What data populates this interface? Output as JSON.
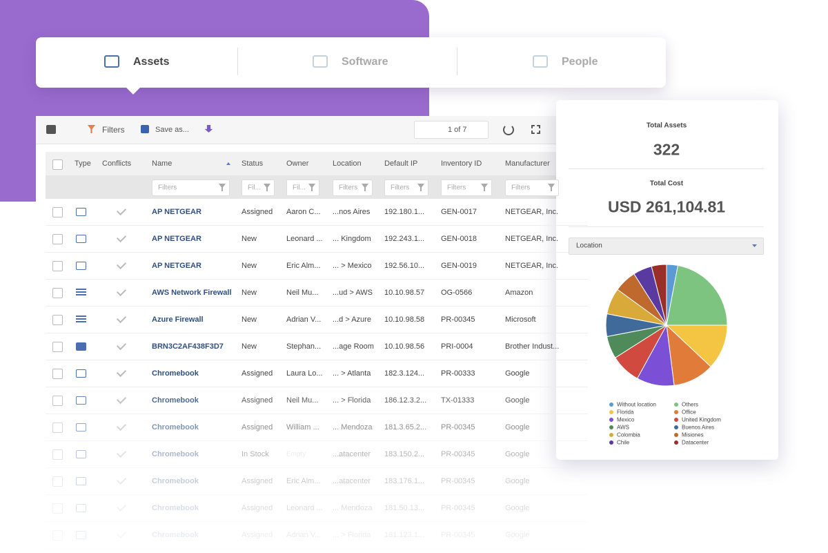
{
  "tabs": [
    "Assets",
    "Software",
    "People"
  ],
  "toolbar": {
    "filters": "Filters",
    "save": "Save as...",
    "pagination": "1 of 7"
  },
  "table": {
    "columns": [
      "Type",
      "Conflicts",
      "Name",
      "Status",
      "Owner",
      "Location",
      "Default IP",
      "Inventory ID",
      "Manufacturer"
    ],
    "filter_placeholders": [
      "Filters",
      "Fil...",
      "Fil...",
      "Filters",
      "Filters",
      "Filters",
      "Filters"
    ],
    "rows": [
      [
        "AP NETGEAR",
        "Assigned",
        "Aaron C...",
        "...nos Aires",
        "192.180.1...",
        "GEN-0017",
        "NETGEAR, Inc."
      ],
      [
        "AP NETGEAR",
        "New",
        "Leonard ...",
        "... Kingdom",
        "192.243.1...",
        "GEN-0018",
        "NETGEAR, Inc."
      ],
      [
        "AP NETGEAR",
        "New",
        "Eric Alm...",
        "... > Mexico",
        "192.56.10...",
        "GEN-0019",
        "NETGEAR, Inc."
      ],
      [
        "AWS Network Firewall",
        "New",
        "Neil Mu...",
        "...ud > AWS",
        "10.10.98.57",
        "OG-0566",
        "Amazon"
      ],
      [
        "Azure Firewall",
        "New",
        "Adrian V...",
        "...d > Azure",
        "10.10.98.58",
        "PR-00345",
        "Microsoft"
      ],
      [
        "BRN3C2AF438F3D7",
        "New",
        "Stephan...",
        "...age Room",
        "10.10.98.56",
        "PRI-0004",
        "Brother Indust..."
      ],
      [
        "Chromebook",
        "Assigned",
        "Laura Lo...",
        "... > Atlanta",
        "182.3.124...",
        "PR-00333",
        "Google"
      ],
      [
        "Chromebook",
        "Assigned",
        "Neil Mu...",
        "... > Florida",
        "186.12.3.2...",
        "TX-01333",
        "Google"
      ],
      [
        "Chromebook",
        "Assigned",
        "William ...",
        "... Mendoza",
        "181.3.65.2...",
        "PR-00345",
        "Google"
      ],
      [
        "Chromebook",
        "In Stock",
        "Empty",
        "...atacenter",
        "183.150.2...",
        "PR-00345",
        "Google"
      ],
      [
        "Chromebook",
        "Assigned",
        "Eric Alm...",
        "...atacenter",
        "183.176.1...",
        "PR-00345",
        "Google"
      ],
      [
        "Chromebook",
        "Assigned",
        "Leonard ...",
        "... Mendoza",
        "181.50.13...",
        "PR-00345",
        "Google"
      ],
      [
        "Chromebook",
        "Assigned",
        "Adrian V...",
        "... > Florida",
        "181.123.1...",
        "PR-00345",
        "Google"
      ]
    ]
  },
  "panel": {
    "total_assets_label": "Total Assets",
    "total_assets": "322",
    "total_cost_label": "Total Cost",
    "total_cost": "USD 261,104.81",
    "dropdown": "Location"
  },
  "chart_data": {
    "type": "pie",
    "categories": [
      "Without location",
      "Others",
      "Florida",
      "Office",
      "Mexico",
      "United Kingdom",
      "AWS",
      "Buenos Aires",
      "Colombia",
      "Misiones",
      "Chile",
      "Datacenter"
    ],
    "values": [
      3,
      22,
      12,
      11,
      10,
      8,
      6,
      6,
      7,
      6,
      5,
      4
    ],
    "colors": [
      "#5b9bd5",
      "#7cc47f",
      "#f4c542",
      "#e07b39",
      "#7b4fd6",
      "#d04a3f",
      "#4f8a5b",
      "#3f6a9a",
      "#d9a93a",
      "#c0692f",
      "#5a3aa0",
      "#9a2f2a"
    ]
  }
}
